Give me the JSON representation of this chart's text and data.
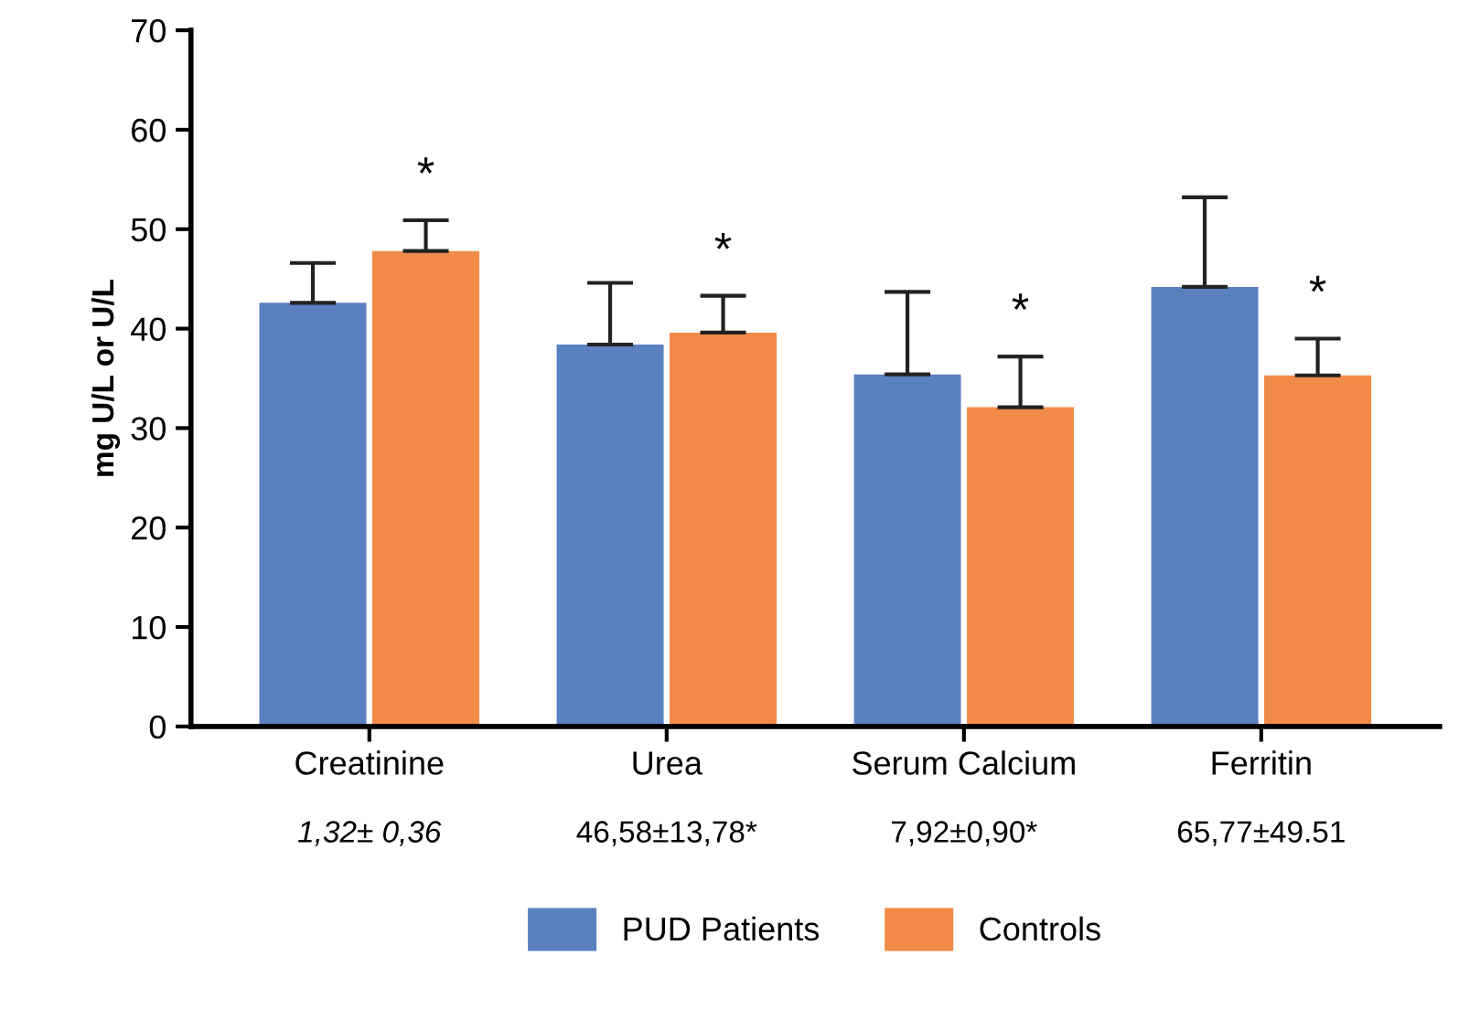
{
  "chart_data": {
    "type": "bar",
    "ylabel": "mg U/L or U/L",
    "categories": [
      "Creatinine",
      "Urea",
      "Serum Calcium",
      "Ferritin"
    ],
    "series": [
      {
        "name": "PUD Patients",
        "color": "#5b80c2",
        "values": [
          42.6,
          38.4,
          35.4,
          44.2
        ],
        "errors": [
          [
            42.6,
            46.6
          ],
          [
            38.4,
            44.6
          ],
          [
            35.4,
            43.7
          ],
          [
            44.2,
            53.2
          ]
        ]
      },
      {
        "name": "Controls",
        "color": "#f28a48",
        "values": [
          47.8,
          39.6,
          32.1,
          35.3
        ],
        "errors": [
          [
            47.8,
            50.9
          ],
          [
            39.6,
            43.3
          ],
          [
            32.1,
            37.2
          ],
          [
            35.3,
            39.0
          ]
        ]
      }
    ],
    "ylim": [
      0,
      70
    ],
    "yticks": [
      0,
      10,
      20,
      30,
      40,
      50,
      60,
      70
    ],
    "grid": false,
    "legend": "bottom",
    "annotations": [
      "*",
      "*",
      "*",
      "*",
      "1,32± 0,36",
      "46,58±13,78*",
      "7,92±0,90*",
      "65,77±49.51"
    ]
  }
}
